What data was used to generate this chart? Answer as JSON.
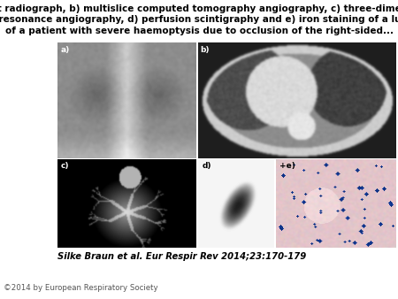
{
  "title_line1": "a) Chest radiograph, b) multislice computed tomography angiography, c) three-dimensional",
  "title_line2": "magnetic resonance angiography, d) perfusion scintigraphy and e) iron staining of a lung biopsy",
  "title_line3": "of a patient with severe haemoptysis due to occlusion of the right-sided...",
  "citation": "Silke Braun et al. Eur Respir Rev 2014;23:170-179",
  "copyright": "©2014 by European Respiratory Society",
  "bg_color": "#ffffff",
  "title_fontsize": 7.5,
  "citation_fontsize": 7.2,
  "copyright_fontsize": 6.2,
  "fig_width": 4.5,
  "fig_height": 3.38,
  "dpi": 100
}
